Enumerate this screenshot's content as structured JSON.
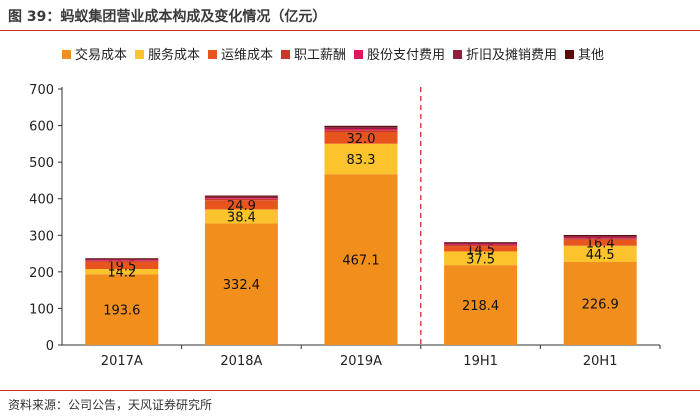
{
  "title": "图 39：蚂蚁集团营业成本构成及变化情况（亿元）",
  "source": "资料来源：公司公告，天风证券研究所",
  "chart_data": {
    "type": "bar",
    "stacked": true,
    "categories": [
      "2017A",
      "2018A",
      "2019A",
      "19H1",
      "20H1"
    ],
    "ylim": [
      0,
      700
    ],
    "yticks": [
      0,
      100,
      200,
      300,
      400,
      500,
      600,
      700
    ],
    "divider_after_category": "2019A",
    "series": [
      {
        "name": "交易成本",
        "color": "#f28e1c",
        "values": [
          193.6,
          332.4,
          467.1,
          218.4,
          226.9
        ],
        "labels": [
          "193.6",
          "332.4",
          "467.1",
          "218.4",
          "226.9"
        ]
      },
      {
        "name": "服务成本",
        "color": "#fbc32c",
        "values": [
          14.2,
          38.4,
          83.3,
          37.5,
          44.5
        ],
        "labels": [
          "14.2",
          "38.4",
          "83.3",
          "37.5",
          "44.5"
        ]
      },
      {
        "name": "运维成本",
        "color": "#e8541e",
        "values": [
          19.5,
          24.9,
          32.0,
          14.5,
          16.4
        ],
        "labels": [
          "19.5",
          "24.9",
          "32.0",
          "14.5",
          "16.4"
        ]
      },
      {
        "name": "职工薪酬",
        "color": "#c8392b",
        "values": [
          3,
          4,
          5,
          3,
          4
        ],
        "labels": null
      },
      {
        "name": "股份支付费用",
        "color": "#e3145c",
        "values": [
          2,
          2,
          3,
          2,
          2
        ],
        "labels": null
      },
      {
        "name": "折旧及摊销费用",
        "color": "#8e1f3e",
        "values": [
          3,
          4,
          5,
          4,
          4
        ],
        "labels": null
      },
      {
        "name": "其他",
        "color": "#5c0b0b",
        "values": [
          2,
          3,
          4,
          2,
          3
        ],
        "labels": null
      }
    ]
  }
}
